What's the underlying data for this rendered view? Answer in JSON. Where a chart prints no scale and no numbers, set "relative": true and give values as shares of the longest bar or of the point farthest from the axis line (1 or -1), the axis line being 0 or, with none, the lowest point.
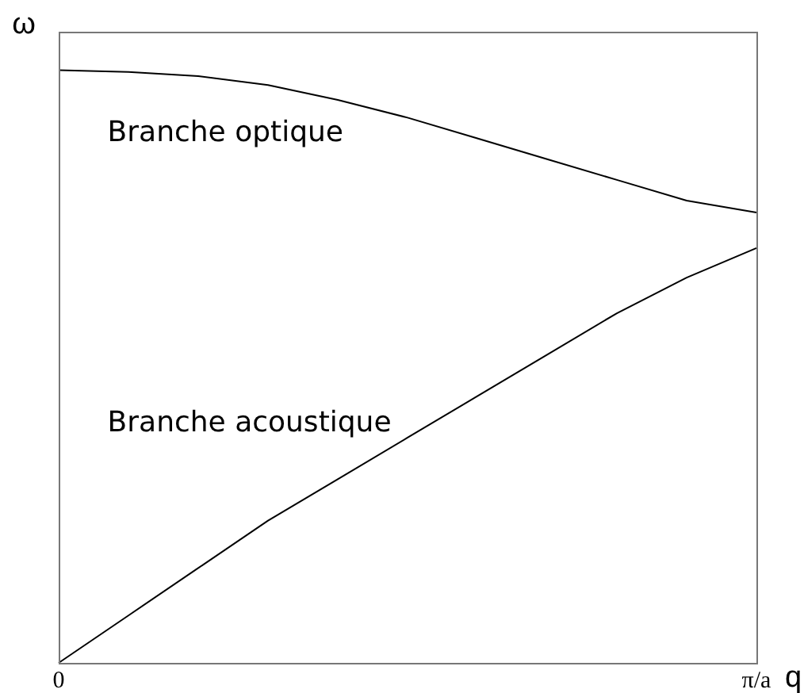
{
  "chart_data": {
    "type": "line",
    "relative": true,
    "xlabel": "q",
    "ylabel": "ω",
    "categories": [
      "0",
      null,
      null,
      null,
      null,
      null,
      null,
      null,
      null,
      null,
      "π/a"
    ],
    "grid": false,
    "legend": false,
    "marker": "none",
    "line_style": "solid",
    "series": [
      {
        "name": "Branche optique",
        "color": "#000000",
        "values": [
          1,
          0.997,
          0.99,
          0.975,
          0.95,
          0.92,
          0.885,
          0.85,
          0.815,
          0.78,
          0.76
        ]
      },
      {
        "name": "Branche acoustique",
        "color": "#000000",
        "values": [
          0,
          0.08,
          0.16,
          0.24,
          0.31,
          0.38,
          0.45,
          0.52,
          0.59,
          0.65,
          0.7
        ]
      }
    ]
  }
}
